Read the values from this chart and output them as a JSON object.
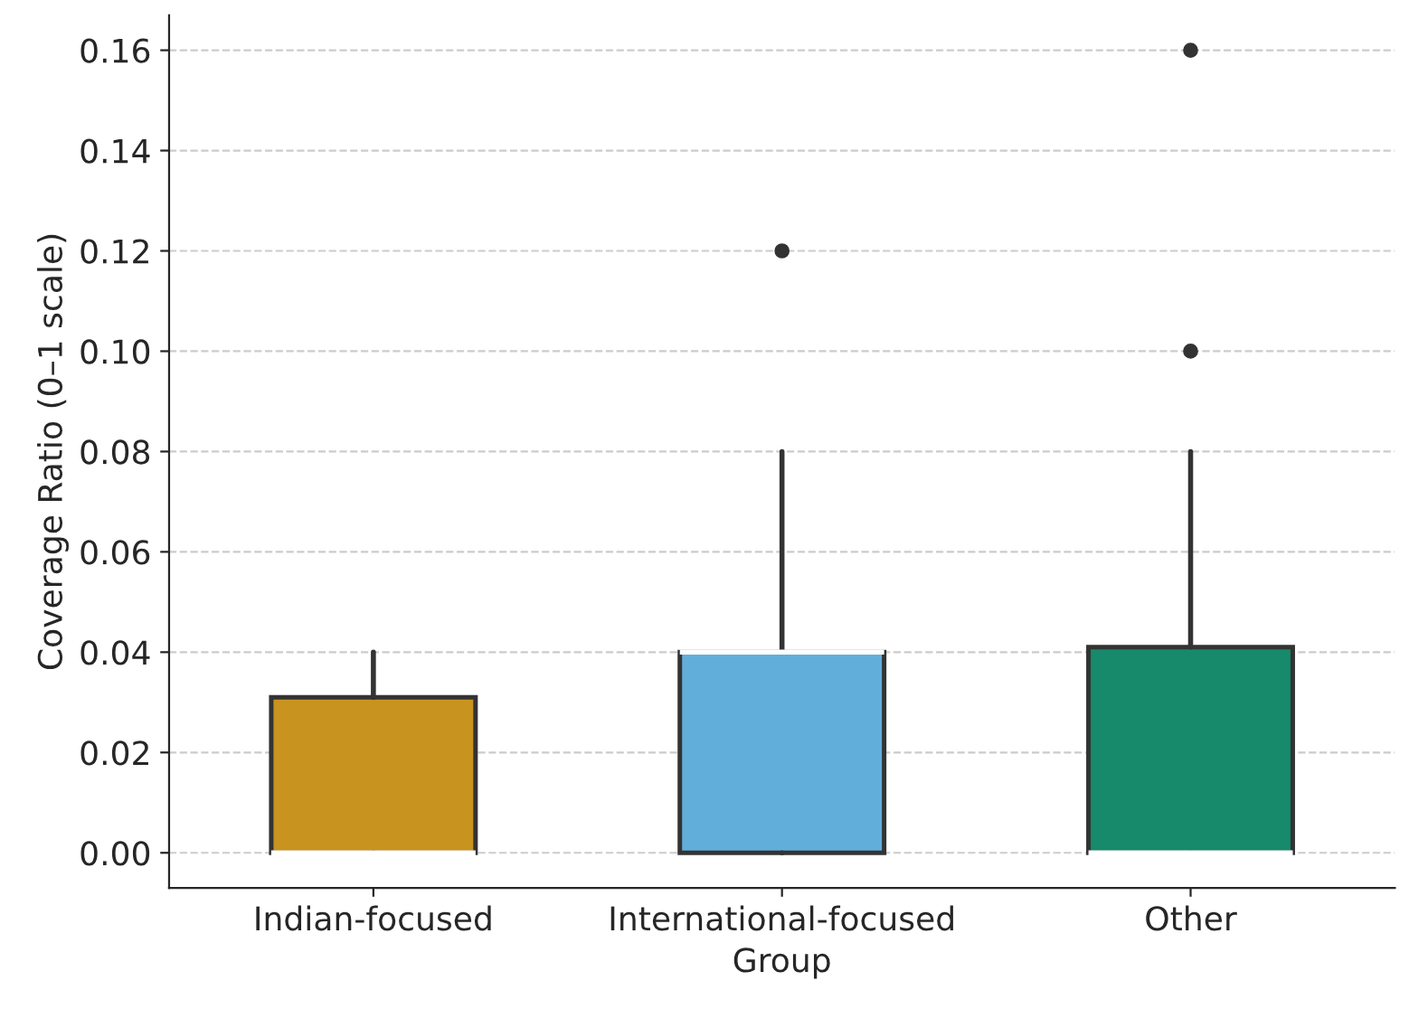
{
  "chart_data": {
    "type": "box",
    "xlabel": "Group",
    "ylabel": "Coverage Ratio (0–1 scale)",
    "categories": [
      "Indian-focused",
      "International-focused",
      "Other"
    ],
    "colors": [
      "#c8931e",
      "#62aedb",
      "#168a6a"
    ],
    "boxes": [
      {
        "low": 0,
        "q1": 0,
        "median": 0,
        "q3": 0.031,
        "high": 0.04
      },
      {
        "low": 0,
        "q1": 0,
        "median": 0.04,
        "q3": 0.04,
        "high": 0.08,
        "outliers": [
          0.12
        ]
      },
      {
        "low": 0,
        "q1": 0,
        "median": 0,
        "q3": 0.041,
        "high": 0.08,
        "outliers": [
          0.1,
          0.16
        ]
      }
    ],
    "ylim": [
      -0.007,
      0.167
    ],
    "yticks": [
      {
        "value": 0,
        "label": "0.00"
      },
      {
        "value": 0.02,
        "label": "0.02"
      },
      {
        "value": 0.04,
        "label": "0.04"
      },
      {
        "value": 0.06,
        "label": "0.06"
      },
      {
        "value": 0.08,
        "label": "0.08"
      },
      {
        "value": 0.1,
        "label": "0.10"
      },
      {
        "value": 0.12,
        "label": "0.12"
      },
      {
        "value": 0.14,
        "label": "0.14"
      },
      {
        "value": 0.16,
        "label": "0.16"
      }
    ],
    "grid": "y"
  }
}
